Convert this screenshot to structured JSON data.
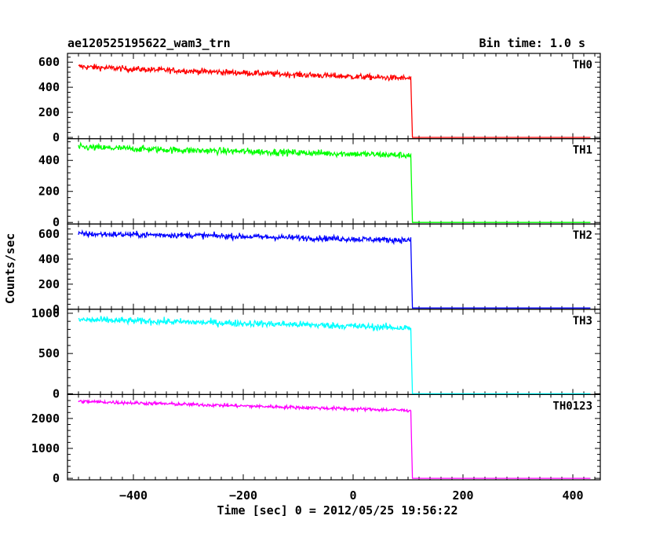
{
  "header": {
    "left_title": "ae120525195622_wam3_trn",
    "right_title": "Bin time: 1.0 s"
  },
  "axes": {
    "xlabel": "Time [sec] 0 = 2012/05/25 19:56:22",
    "ylabel": "Counts/sec"
  },
  "chart_data": {
    "type": "line",
    "title": "ae120525195622_wam3_trn",
    "subtitle": "Bin time: 1.0 s",
    "xlabel": "Time [sec] 0 = 2012/05/25 19:56:22",
    "ylabel": "Counts/sec",
    "xlim": [
      -520,
      450
    ],
    "x_ticks": [
      -400,
      -200,
      0,
      200,
      400
    ],
    "x_tick_labels": [
      "−400",
      "−200",
      "0",
      "200",
      "400"
    ],
    "grid": false,
    "cutoff_time": 108,
    "series_end_time": 432,
    "series": [
      {
        "name": "TH0",
        "color": "#ff0000",
        "ylim": [
          -10,
          670
        ],
        "y_ticks": [
          0,
          200,
          400,
          600
        ],
        "y_tick_labels": [
          "0",
          "200",
          "400",
          "600"
        ],
        "trend": [
          [
            -500,
            565
          ],
          [
            -400,
            545
          ],
          [
            -300,
            530
          ],
          [
            -200,
            515
          ],
          [
            -100,
            500
          ],
          [
            0,
            485
          ],
          [
            105,
            470
          ],
          [
            108,
            0
          ],
          [
            432,
            0
          ]
        ],
        "noise": 22
      },
      {
        "name": "TH1",
        "color": "#00ff00",
        "ylim": [
          -10,
          540
        ],
        "y_ticks": [
          0,
          200,
          400
        ],
        "y_tick_labels": [
          "0",
          "200",
          "400"
        ],
        "trend": [
          [
            -500,
            485
          ],
          [
            -400,
            475
          ],
          [
            -300,
            465
          ],
          [
            -200,
            458
          ],
          [
            -100,
            450
          ],
          [
            0,
            442
          ],
          [
            105,
            432
          ],
          [
            108,
            0
          ],
          [
            432,
            0
          ]
        ],
        "noise": 20
      },
      {
        "name": "TH2",
        "color": "#0000ff",
        "ylim": [
          0,
          680
        ],
        "y_ticks": [
          0,
          200,
          400,
          600
        ],
        "y_tick_labels": [
          "0",
          "200",
          "400",
          "600"
        ],
        "trend": [
          [
            -500,
            600
          ],
          [
            -400,
            595
          ],
          [
            -300,
            590
          ],
          [
            -200,
            580
          ],
          [
            -100,
            570
          ],
          [
            0,
            560
          ],
          [
            105,
            550
          ],
          [
            108,
            10
          ],
          [
            432,
            10
          ]
        ],
        "noise": 22
      },
      {
        "name": "TH3",
        "color": "#00ffff",
        "ylim": [
          -10,
          1050
        ],
        "y_ticks": [
          0,
          500,
          1000
        ],
        "y_tick_labels": [
          "0",
          "500",
          "1000"
        ],
        "trend": [
          [
            -500,
            920
          ],
          [
            -400,
            905
          ],
          [
            -300,
            890
          ],
          [
            -200,
            875
          ],
          [
            -100,
            860
          ],
          [
            0,
            840
          ],
          [
            105,
            815
          ],
          [
            108,
            0
          ],
          [
            432,
            0
          ]
        ],
        "noise": 40
      },
      {
        "name": "TH0123",
        "color": "#ff00ff",
        "ylim": [
          -50,
          2800
        ],
        "y_ticks": [
          0,
          1000,
          2000
        ],
        "y_tick_labels": [
          "0",
          "1000",
          "2000"
        ],
        "trend": [
          [
            -500,
            2570
          ],
          [
            -400,
            2520
          ],
          [
            -300,
            2470
          ],
          [
            -200,
            2420
          ],
          [
            -100,
            2370
          ],
          [
            0,
            2320
          ],
          [
            105,
            2270
          ],
          [
            108,
            0
          ],
          [
            432,
            0
          ]
        ],
        "noise": 55
      }
    ]
  }
}
